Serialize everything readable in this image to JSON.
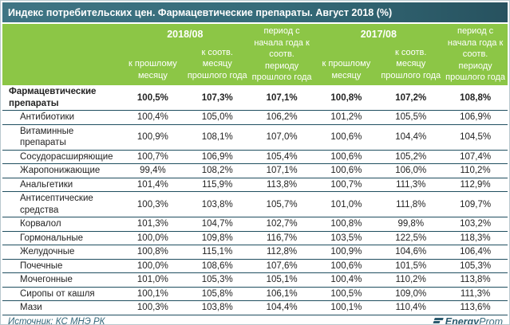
{
  "title": "Индекс потребительских цен. Фармацевтические препараты. Август 2018 (%)",
  "header": {
    "group_2018": "2018/08",
    "group_2017": "2017/08",
    "col_month": "к прошлому месяцу",
    "col_year": "к соотв. месяцу прошлого года",
    "col_period": "период с начала года к соотв. периоду прошлого года"
  },
  "chart_data": {
    "type": "table",
    "title": "Индекс потребительских цен. Фармацевтические препараты. Август 2018 (%)",
    "column_groups": [
      {
        "label": "2018/08",
        "sub_columns": [
          "к прошлому месяцу",
          "к соотв. месяцу прошлого года"
        ]
      },
      {
        "label": "период с начала года к соотв. периоду прошлого года"
      },
      {
        "label": "2017/08",
        "sub_columns": [
          "к прошлому месяцу",
          "к соотв. месяцу прошлого года"
        ]
      },
      {
        "label": "период с начала года к соотв. периоду прошлого года"
      }
    ],
    "rows": [
      {
        "label": "Фармацевтические препараты",
        "bold": true,
        "values": [
          "100,5%",
          "107,3%",
          "107,1%",
          "100,8%",
          "107,2%",
          "108,8%"
        ]
      },
      {
        "label": "Антибиотики",
        "bold": false,
        "values": [
          "100,4%",
          "105,0%",
          "106,2%",
          "101,2%",
          "105,5%",
          "106,9%"
        ]
      },
      {
        "label": "Витаминные препараты",
        "bold": false,
        "values": [
          "100,9%",
          "108,1%",
          "107,0%",
          "100,6%",
          "104,4%",
          "104,5%"
        ]
      },
      {
        "label": "Сосудорасширяющие",
        "bold": false,
        "values": [
          "100,7%",
          "106,9%",
          "105,4%",
          "100,6%",
          "105,2%",
          "107,4%"
        ]
      },
      {
        "label": "Жаропонижающие",
        "bold": false,
        "values": [
          "99,4%",
          "108,2%",
          "107,1%",
          "100,6%",
          "106,0%",
          "110,2%"
        ]
      },
      {
        "label": "Анальгетики",
        "bold": false,
        "values": [
          "101,4%",
          "115,9%",
          "113,8%",
          "100,7%",
          "111,3%",
          "112,9%"
        ]
      },
      {
        "label": "Антисептические средства",
        "bold": false,
        "values": [
          "100,3%",
          "103,8%",
          "105,7%",
          "101,0%",
          "111,8%",
          "109,7%"
        ]
      },
      {
        "label": "Корвалол",
        "bold": false,
        "values": [
          "101,3%",
          "104,7%",
          "102,7%",
          "100,8%",
          "99,8%",
          "103,2%"
        ]
      },
      {
        "label": "Гормональные",
        "bold": false,
        "values": [
          "100,0%",
          "109,8%",
          "116,7%",
          "103,5%",
          "122,5%",
          "118,3%"
        ]
      },
      {
        "label": "Желудочные",
        "bold": false,
        "values": [
          "100,8%",
          "115,1%",
          "112,8%",
          "100,9%",
          "104,6%",
          "106,4%"
        ]
      },
      {
        "label": "Почечные",
        "bold": false,
        "values": [
          "100,0%",
          "108,6%",
          "107,6%",
          "100,6%",
          "101,5%",
          "105,3%"
        ]
      },
      {
        "label": "Мочегонные",
        "bold": false,
        "values": [
          "101,0%",
          "105,3%",
          "105,1%",
          "100,4%",
          "110,2%",
          "113,8%"
        ]
      },
      {
        "label": "Сиропы от кашля",
        "bold": false,
        "values": [
          "100,1%",
          "105,8%",
          "106,1%",
          "100,5%",
          "109,0%",
          "111,3%"
        ]
      },
      {
        "label": "Мази",
        "bold": false,
        "values": [
          "100,3%",
          "103,8%",
          "104,4%",
          "100,1%",
          "110,4%",
          "113,6%"
        ]
      }
    ]
  },
  "footer": {
    "source": "Источник: КС МНЭ РК",
    "logo_bold": "Energy",
    "logo_light": "Prom"
  },
  "colors": {
    "title_bar": "#356b79",
    "header_green": "#8cc646",
    "row_line": "#1f4e5f",
    "accent_teal": "#2b5a6e"
  }
}
